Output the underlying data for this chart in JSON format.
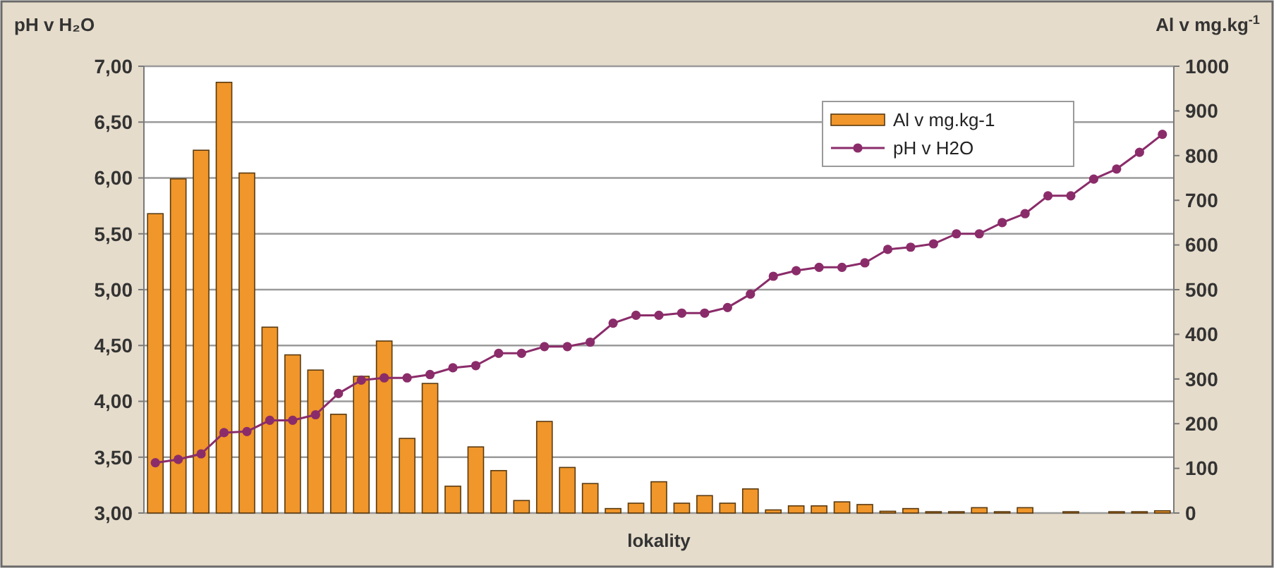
{
  "chart_data": {
    "type": "bar",
    "xlabel": "lokality",
    "ylabel": "pH v H₂O",
    "y2label": "Al v mg.kg$^{-1}$",
    "categories": [
      null,
      null,
      null,
      null,
      null,
      null,
      null,
      null,
      null,
      null,
      null,
      null,
      null,
      null,
      null,
      null,
      null,
      null,
      null,
      null,
      null,
      null,
      null,
      null,
      null,
      null,
      null,
      null,
      null,
      null,
      null,
      null,
      null,
      null,
      null,
      null,
      null,
      null,
      null,
      null,
      null,
      null,
      null,
      null,
      null
    ],
    "series": [
      {
        "name": "Al v mg.kg-1",
        "axis": "y2",
        "color": "#f0962a",
        "values": [
          670,
          748,
          812,
          964,
          761,
          416,
          354,
          320,
          221,
          306,
          385,
          167,
          290,
          60,
          148,
          95,
          28,
          205,
          102,
          66,
          10,
          22,
          70,
          22,
          39,
          22,
          54,
          7,
          16,
          16,
          25,
          19,
          4,
          10,
          3,
          3,
          12,
          3,
          12,
          0,
          3,
          0,
          3,
          3,
          5
        ]
      },
      {
        "name": "pH v H2O",
        "type": "line",
        "color": "#8b2c6a",
        "values": [
          3.45,
          3.48,
          3.53,
          3.72,
          3.73,
          3.83,
          3.83,
          3.88,
          4.07,
          4.19,
          4.21,
          4.21,
          4.24,
          4.3,
          4.32,
          4.43,
          4.43,
          4.49,
          4.49,
          4.53,
          4.7,
          4.77,
          4.77,
          4.79,
          4.79,
          4.84,
          4.96,
          5.12,
          5.17,
          5.2,
          5.2,
          5.24,
          5.36,
          5.38,
          5.41,
          5.5,
          5.5,
          5.6,
          5.68,
          5.84,
          5.84,
          5.99,
          6.08,
          6.23,
          6.39
        ]
      }
    ],
    "ylim": [
      3,
      7
    ],
    "yticks": [
      {
        "value": 3,
        "label": "3,00"
      },
      {
        "value": 3.5,
        "label": "3,50"
      },
      {
        "value": 4,
        "label": "4,00"
      },
      {
        "value": 4.5,
        "label": "4,50"
      },
      {
        "value": 5,
        "label": "5,00"
      },
      {
        "value": 5.5,
        "label": "5,50"
      },
      {
        "value": 6,
        "label": "6,00"
      },
      {
        "value": 6.5,
        "label": "6,50"
      },
      {
        "value": 7,
        "label": "7,00"
      }
    ],
    "y2lim": [
      0,
      1000
    ],
    "y2ticks": [
      0,
      100,
      200,
      300,
      400,
      500,
      600,
      700,
      800,
      900,
      1000
    ],
    "grid": "y",
    "legend": "top right",
    "marker": "circle",
    "line_style": "solid"
  }
}
